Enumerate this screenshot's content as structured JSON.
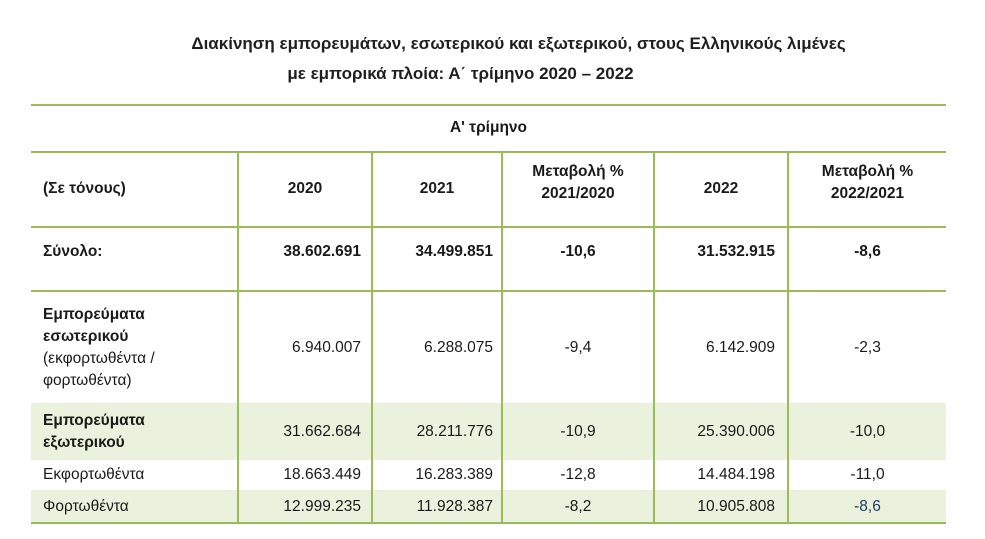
{
  "title": {
    "line1": "Διακίνηση εμπορευμάτων, εσωτερικού και εξωτερικού, στους Ελληνικούς λιμένες",
    "line2": "με εμπορικά πλοία: Α΄ τρίμηνο 2020 – 2022"
  },
  "table": {
    "group_header": "Α' τρίμηνο",
    "headers": {
      "unit": "(Σε τόνους)",
      "y2020": "2020",
      "y2021": "2021",
      "chg1_line1": "Μεταβολή %",
      "chg1_line2": "2021/2020",
      "y2022": "2022",
      "chg2_line1": "Μεταβολή %",
      "chg2_line2": "2022/2021"
    },
    "rows": {
      "total": {
        "label": "Σύνολο:",
        "v2020": "38.602.691",
        "v2021": "34.499.851",
        "c1": "-10,6",
        "v2022": "31.532.915",
        "c2": "-8,6"
      },
      "domestic": {
        "label_l1": "Εμπορεύματα",
        "label_l2": "εσωτερικού",
        "sub_l1": "(εκφορτωθέντα /",
        "sub_l2": "φορτωθέντα)",
        "v2020": "6.940.007",
        "v2021": "6.288.075",
        "c1": "-9,4",
        "v2022": "6.142.909",
        "c2": "-2,3"
      },
      "foreign": {
        "label_l1": "Εμπορεύματα",
        "label_l2": "εξωτερικού",
        "v2020": "31.662.684",
        "v2021": "28.211.776",
        "c1": "-10,9",
        "v2022": "25.390.006",
        "c2": "-10,0"
      },
      "unloaded": {
        "label": "Εκφορτωθέντα",
        "v2020": "18.663.449",
        "v2021": "16.283.389",
        "c1": "-12,8",
        "v2022": "14.484.198",
        "c2": "-11,0"
      },
      "loaded": {
        "label": "Φορτωθέντα",
        "v2020": "12.999.235",
        "v2021": "11.928.387",
        "c1": "-8,2",
        "v2022": "10.905.808",
        "c2": "-8,6"
      }
    }
  },
  "colors": {
    "border": "#9bbb59",
    "band": "#eaf1dd",
    "highlight_text": "#1f3a5f"
  }
}
